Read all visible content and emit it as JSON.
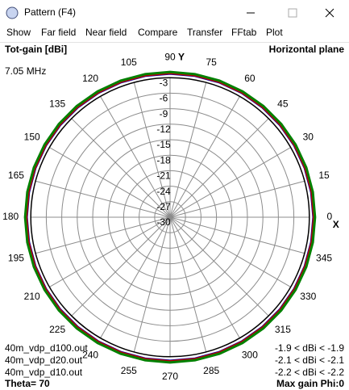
{
  "window": {
    "title": "Pattern   (F4)"
  },
  "menu": [
    "Show",
    "Far field",
    "Near field",
    "Compare",
    "Transfer",
    "FFtab",
    "Plot"
  ],
  "chart_data": {
    "type": "polar",
    "title": "Tot-gain [dBi]",
    "subtitle": "Horizontal plane",
    "frequency": "7.05 MHz",
    "x_axis_label": "X",
    "y_axis_label": "Y",
    "rlim": [
      -30,
      0
    ],
    "rticks": [
      -3,
      -6,
      -9,
      -12,
      -15,
      -18,
      -21,
      -24,
      -27,
      -30
    ],
    "angle_ticks": [
      0,
      15,
      30,
      45,
      60,
      75,
      90,
      105,
      120,
      135,
      150,
      165,
      180,
      195,
      210,
      225,
      240,
      255,
      270,
      285,
      300,
      315,
      330,
      345
    ],
    "theta": [
      0,
      10,
      20,
      30,
      40,
      50,
      60,
      70,
      80,
      90,
      100,
      110,
      120,
      130,
      140,
      150,
      160,
      170,
      180,
      190,
      200,
      210,
      220,
      230,
      240,
      250,
      260,
      270,
      280,
      290,
      300,
      310,
      320,
      330,
      340,
      350
    ],
    "series": [
      {
        "name": "40m_vdp_d10.out",
        "color": "#0000a0",
        "range_label": "-2.2 < dBi < -2.2",
        "values": [
          -2.2,
          -2.2,
          -2.2,
          -2.2,
          -2.2,
          -2.2,
          -2.2,
          -2.2,
          -2.2,
          -2.2,
          -2.2,
          -2.2,
          -2.2,
          -2.2,
          -2.2,
          -2.2,
          -2.2,
          -2.2,
          -2.2,
          -2.2,
          -2.2,
          -2.2,
          -2.2,
          -2.2,
          -2.2,
          -2.2,
          -2.2,
          -2.2,
          -2.2,
          -2.2,
          -2.2,
          -2.2,
          -2.2,
          -2.2,
          -2.2,
          -2.2
        ]
      },
      {
        "name": "40m_vdp_d20.out",
        "color": "#c00000",
        "range_label": "-2.1 < dBi < -2.1",
        "values": [
          -2.1,
          -2.1,
          -2.1,
          -2.1,
          -2.1,
          -2.1,
          -2.1,
          -2.1,
          -2.1,
          -2.1,
          -2.1,
          -2.1,
          -2.1,
          -2.1,
          -2.1,
          -2.1,
          -2.1,
          -2.1,
          -2.1,
          -2.1,
          -2.1,
          -2.1,
          -2.1,
          -2.1,
          -2.1,
          -2.1,
          -2.1,
          -2.1,
          -2.1,
          -2.1,
          -2.1,
          -2.1,
          -2.1,
          -2.1,
          -2.1,
          -2.1
        ]
      },
      {
        "name": "40m_vdp_d100.out",
        "color": "#008000",
        "range_label": "-1.9 < dBi < -1.9",
        "values": [
          -1.9,
          -1.9,
          -1.9,
          -1.9,
          -1.9,
          -1.9,
          -1.9,
          -1.9,
          -1.9,
          -1.9,
          -1.9,
          -1.9,
          -1.9,
          -1.9,
          -1.9,
          -1.9,
          -1.9,
          -1.9,
          -1.9,
          -1.9,
          -1.9,
          -1.9,
          -1.9,
          -1.9,
          -1.9,
          -1.9,
          -1.9,
          -1.9,
          -1.9,
          -1.9,
          -1.9,
          -1.9,
          -1.9,
          -1.9,
          -1.9,
          -1.9
        ]
      }
    ],
    "legend_order": [
      2,
      1,
      0
    ],
    "theta_label": "Theta= 70",
    "max_gain_label": "Max gain Phi:0"
  }
}
